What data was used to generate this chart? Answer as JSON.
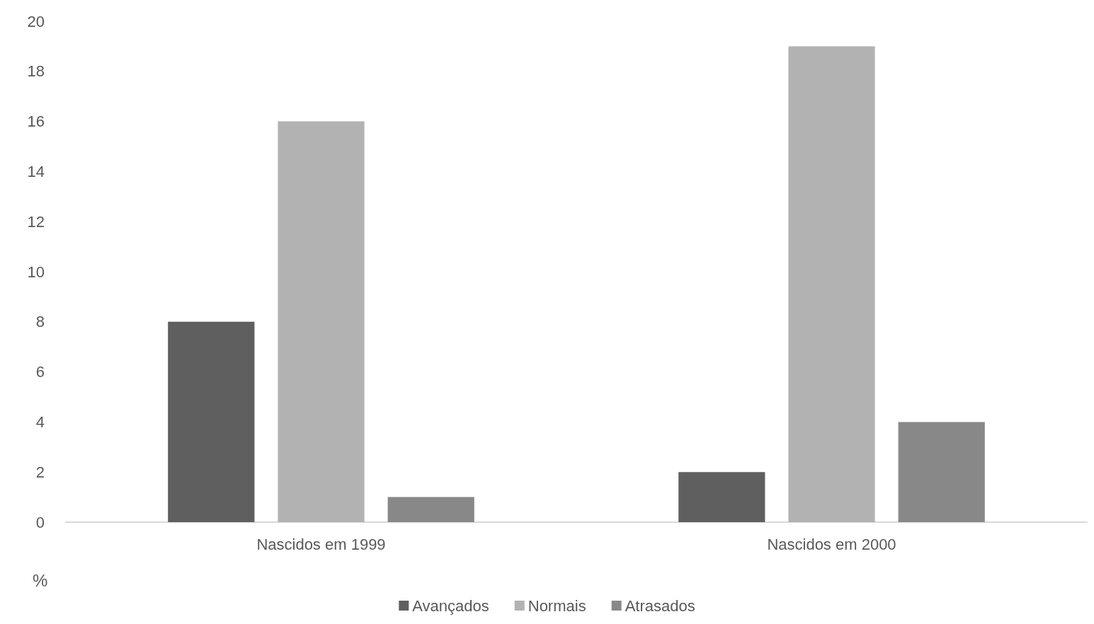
{
  "chart_data": {
    "type": "bar",
    "ylabel": "%",
    "categories": [
      "Nascidos em 1999",
      "Nascidos em 2000"
    ],
    "series": [
      {
        "name": "Avançados",
        "color": "#5f5f5f",
        "values": [
          8,
          2
        ]
      },
      {
        "name": "Normais",
        "color": "#b2b2b2",
        "values": [
          16,
          19
        ]
      },
      {
        "name": "Atrasados",
        "color": "#888888",
        "values": [
          1,
          4
        ]
      }
    ],
    "ylim": [
      0,
      20
    ],
    "yticks": [
      0,
      2,
      4,
      6,
      8,
      10,
      12,
      14,
      16,
      18,
      20
    ],
    "grid": false,
    "legend": "bottom"
  }
}
